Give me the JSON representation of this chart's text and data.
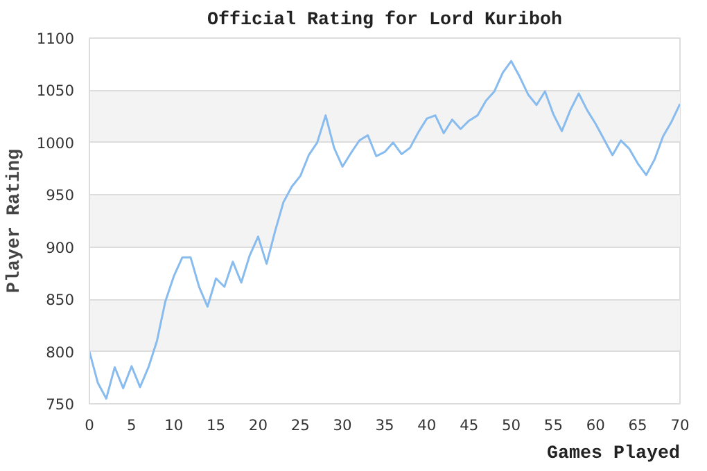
{
  "chart_data": {
    "type": "line",
    "title": "Official Rating for Lord Kuriboh",
    "xlabel": "Games Played",
    "ylabel": "Player Rating",
    "x": [
      0,
      1,
      2,
      3,
      4,
      5,
      6,
      7,
      8,
      9,
      10,
      11,
      12,
      13,
      14,
      15,
      16,
      17,
      18,
      19,
      20,
      21,
      22,
      23,
      24,
      25,
      26,
      27,
      28,
      29,
      30,
      31,
      32,
      33,
      34,
      35,
      36,
      37,
      38,
      39,
      40,
      41,
      42,
      43,
      44,
      45,
      46,
      47,
      48,
      49,
      50,
      51,
      52,
      53,
      54,
      55,
      56,
      57,
      58,
      59,
      60,
      61,
      62,
      63,
      64,
      65,
      66,
      67,
      68,
      69,
      70
    ],
    "series": [
      {
        "color": "#88bbee",
        "values": [
          800,
          770,
          755,
          785,
          765,
          786,
          766,
          785,
          810,
          848,
          872,
          890,
          890,
          862,
          843,
          870,
          862,
          886,
          866,
          892,
          910,
          884,
          915,
          943,
          958,
          968,
          988,
          1000,
          1026,
          995,
          977,
          990,
          1002,
          1007,
          987,
          991,
          1000,
          989,
          995,
          1010,
          1023,
          1026,
          1009,
          1022,
          1013,
          1021,
          1026,
          1040,
          1049,
          1067,
          1078,
          1063,
          1046,
          1036,
          1049,
          1027,
          1011,
          1031,
          1047,
          1031,
          1018,
          1003,
          988,
          1002,
          994,
          980,
          969,
          984,
          1006,
          1020,
          1037
        ]
      }
    ],
    "xlim": [
      0,
      70
    ],
    "ylim": [
      750,
      1100
    ],
    "xticks": [
      0,
      5,
      10,
      15,
      20,
      25,
      30,
      35,
      40,
      45,
      50,
      55,
      60,
      65,
      70
    ],
    "yticks": [
      750,
      800,
      850,
      900,
      950,
      1000,
      1050,
      1100
    ],
    "grid": "y",
    "marker": "none",
    "line_style": "solid"
  }
}
